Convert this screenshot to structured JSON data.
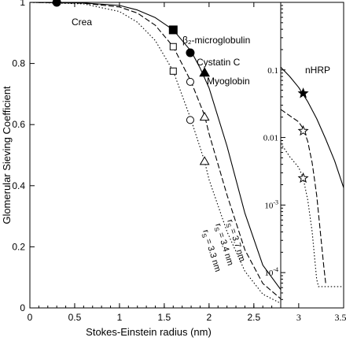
{
  "chart_data": [
    {
      "panel": "left",
      "type": "line",
      "xlabel": "Stokes-Einstein radius (nm)",
      "ylabel": "Glomerular Sieving Coefficient",
      "xlim": [
        0,
        2.8
      ],
      "ylim": [
        0,
        1.0
      ],
      "xticks": [
        0,
        0.5,
        1,
        1.5,
        2,
        2.5
      ],
      "xtick_labels": [
        "0",
        "0.5",
        "1",
        "1.5",
        "2",
        "2.5"
      ],
      "yticks": [
        0,
        0.2,
        0.4,
        0.6,
        0.8,
        1
      ],
      "ytick_labels": [
        "0",
        "0.2",
        "0.4",
        "0.6",
        "0.8",
        "1"
      ],
      "grid": false,
      "series": [
        {
          "name": "rs = 3.7 nm",
          "style": "solid",
          "x": [
            0,
            0.6,
            1.0,
            1.2,
            1.4,
            1.6,
            1.8,
            1.9,
            2.0,
            2.2,
            2.4,
            2.6,
            2.8
          ],
          "y": [
            1.0,
            0.998,
            0.99,
            0.975,
            0.95,
            0.91,
            0.84,
            0.785,
            0.72,
            0.53,
            0.31,
            0.14,
            0.06
          ]
        },
        {
          "name": "rs = 3.4 nm",
          "style": "dashed",
          "x": [
            0,
            0.6,
            1.0,
            1.2,
            1.4,
            1.6,
            1.8,
            1.95,
            2.0,
            2.2,
            2.4,
            2.6,
            2.8
          ],
          "y": [
            1.0,
            0.997,
            0.985,
            0.965,
            0.925,
            0.855,
            0.74,
            0.63,
            0.57,
            0.37,
            0.19,
            0.08,
            0.03
          ]
        },
        {
          "name": "rs = 3.3 nm",
          "style": "dotted",
          "x": [
            0,
            0.6,
            1.0,
            1.2,
            1.4,
            1.6,
            1.8,
            1.95,
            2.0,
            2.2,
            2.4,
            2.6,
            2.8
          ],
          "y": [
            1.0,
            0.995,
            0.97,
            0.935,
            0.875,
            0.775,
            0.615,
            0.48,
            0.42,
            0.25,
            0.12,
            0.045,
            0.015
          ]
        }
      ],
      "markers": [
        {
          "label": "Crea",
          "x": 0.3,
          "y": 1.0,
          "shape": "circle",
          "filled": true
        },
        {
          "label": "β₂-microglobulin",
          "x": 1.6,
          "y": 0.91,
          "shape": "square",
          "filled": true
        },
        {
          "label": "Cystatin C",
          "x": 1.79,
          "y": 0.835,
          "shape": "circle",
          "filled": true
        },
        {
          "label": "Myoglobin",
          "x": 1.95,
          "y": 0.77,
          "shape": "triangle",
          "filled": true
        },
        {
          "x": 1.6,
          "y": 0.855,
          "shape": "square",
          "filled": false
        },
        {
          "x": 1.6,
          "y": 0.775,
          "shape": "square",
          "filled": false
        },
        {
          "x": 1.79,
          "y": 0.74,
          "shape": "circle",
          "filled": false
        },
        {
          "x": 1.79,
          "y": 0.615,
          "shape": "circle",
          "filled": false
        },
        {
          "x": 1.95,
          "y": 0.625,
          "shape": "triangle",
          "filled": false
        },
        {
          "x": 1.95,
          "y": 0.48,
          "shape": "triangle",
          "filled": false
        }
      ],
      "annotations": [
        "r_S = 3.7 nm",
        "r_S = 3.4 nm",
        "r_S = 3.3 nm"
      ]
    },
    {
      "panel": "right",
      "type": "line",
      "yscale": "log",
      "xlim": [
        2.8,
        3.5
      ],
      "ylim": [
        3e-05,
        1.0
      ],
      "xticks": [
        3,
        3.5
      ],
      "xtick_labels": [
        "3",
        "3.5"
      ],
      "yticks": [
        0.1,
        0.01,
        0.001,
        0.0001
      ],
      "ytick_labels": [
        "0.1",
        "0.01",
        "10-3",
        "10-4"
      ],
      "series": [
        {
          "name": "rs = 3.7 nm",
          "style": "solid",
          "x": [
            2.8,
            2.9,
            3.0,
            3.1,
            3.2,
            3.3,
            3.4,
            3.5
          ],
          "y": [
            0.11,
            0.08,
            0.055,
            0.034,
            0.019,
            0.0095,
            0.0045,
            0.0018
          ]
        },
        {
          "name": "rs = 3.4 nm",
          "style": "dashed",
          "x": [
            2.8,
            2.9,
            3.0,
            3.05,
            3.1,
            3.15,
            3.2,
            3.25,
            3.28,
            3.3
          ],
          "y": [
            0.026,
            0.021,
            0.017,
            0.0135,
            0.0088,
            0.0042,
            0.0014,
            0.0003,
            0.00012,
            7e-05
          ]
        },
        {
          "name": "rs = 3.3 nm",
          "style": "dotted",
          "x": [
            2.8,
            2.9,
            3.0,
            3.05,
            3.1,
            3.15,
            3.18,
            3.2,
            3.22,
            3.3,
            3.4,
            3.5
          ],
          "y": [
            0.0082,
            0.0052,
            0.0036,
            0.0025,
            0.0012,
            0.0004,
            0.00015,
            8e-05,
            6.2e-05,
            6.2e-05,
            6.2e-05,
            6.2e-05
          ]
        }
      ],
      "markers": [
        {
          "label": "nHRP",
          "x": 3.05,
          "y": 0.045,
          "shape": "star",
          "filled": true
        },
        {
          "x": 3.05,
          "y": 0.0125,
          "shape": "star",
          "filled": false
        },
        {
          "x": 3.05,
          "y": 0.0025,
          "shape": "star",
          "filled": false
        }
      ]
    }
  ]
}
